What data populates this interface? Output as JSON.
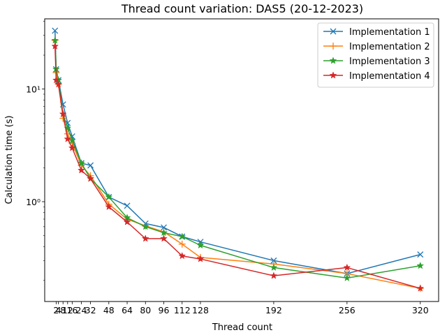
{
  "chart_data": {
    "type": "line",
    "title": "Thread count variation: DAS5 (20-12-2023)",
    "xlabel": "Thread count",
    "ylabel": "Calculation time (s)",
    "yscale": "log",
    "xlim": [
      -8,
      336
    ],
    "ylim": [
      0.13,
      42
    ],
    "x": [
      1,
      2,
      4,
      8,
      12,
      16,
      24,
      32,
      48,
      64,
      80,
      96,
      112,
      128,
      192,
      256,
      320
    ],
    "xticks": [
      2,
      4,
      8,
      12,
      16,
      24,
      32,
      48,
      64,
      80,
      96,
      112,
      128,
      192,
      256,
      320
    ],
    "xtick_labels": [
      "2",
      "4",
      "8",
      "12",
      "16",
      "24",
      "32",
      "48",
      "64",
      "80",
      "96",
      "112",
      "128",
      "192",
      "256",
      "320"
    ],
    "yticks": [
      1,
      10
    ],
    "ytick_labels": [
      "10⁰",
      "10¹"
    ],
    "legend_position": "top-right",
    "grid": false,
    "series": [
      {
        "name": "Implementation 1",
        "color": "#1f77b4",
        "marker": "x",
        "values": [
          33,
          15,
          12,
          7.3,
          5.0,
          3.8,
          2.2,
          2.1,
          1.1,
          0.92,
          0.64,
          0.59,
          0.49,
          0.44,
          0.3,
          0.23,
          0.34
        ]
      },
      {
        "name": "Implementation 2",
        "color": "#ff7f0e",
        "marker": "+",
        "values": [
          27,
          14,
          11,
          5.5,
          4.0,
          3.3,
          2.1,
          1.7,
          0.95,
          0.7,
          0.61,
          0.54,
          0.42,
          0.32,
          0.28,
          0.23,
          0.17
        ]
      },
      {
        "name": "Implementation 3",
        "color": "#2ca02c",
        "marker": "*",
        "values": [
          27,
          15,
          12,
          6.0,
          4.5,
          3.5,
          2.2,
          1.6,
          1.1,
          0.72,
          0.6,
          0.53,
          0.49,
          0.41,
          0.26,
          0.21,
          0.27
        ]
      },
      {
        "name": "Implementation 4",
        "color": "#d62728",
        "marker": "*",
        "values": [
          24,
          12,
          11,
          6.0,
          3.6,
          3.0,
          1.9,
          1.6,
          0.9,
          0.66,
          0.47,
          0.47,
          0.33,
          0.31,
          0.22,
          0.26,
          0.17
        ]
      }
    ]
  }
}
